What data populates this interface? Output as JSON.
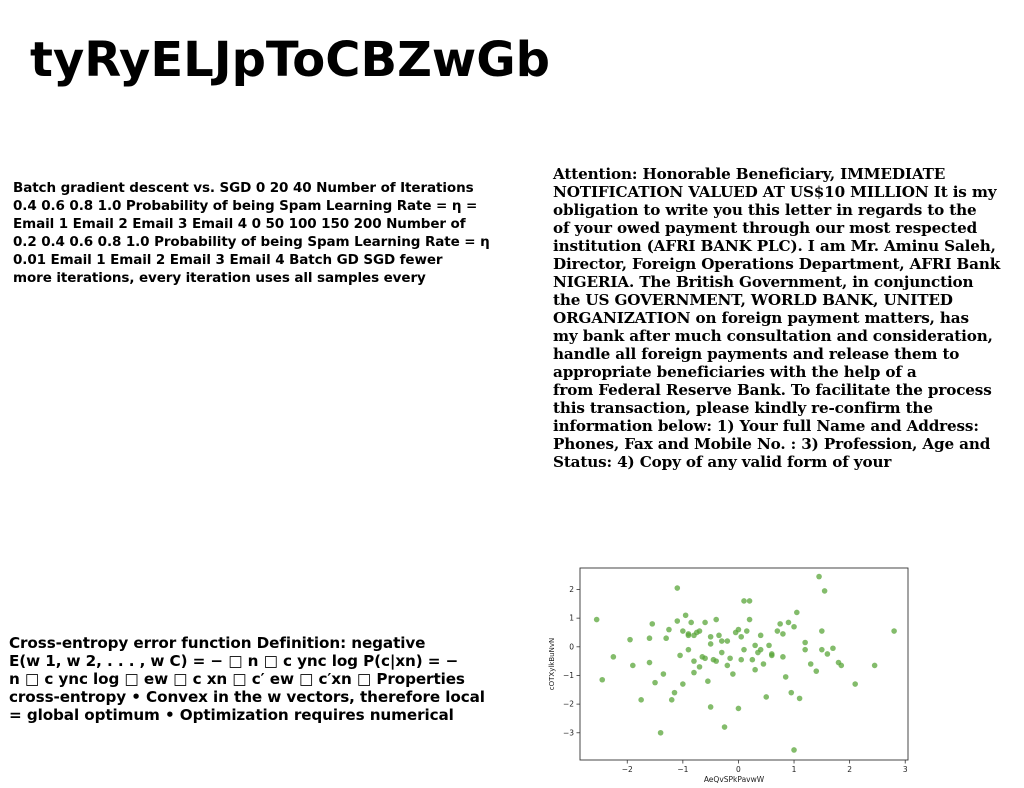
{
  "title": "tyRyELJpToCBZwGb",
  "block_gd": {
    "lines": [
      "Batch gradient descent vs. SGD 0 20 40 Number of Iterations",
      "0.4 0.6 0.8 1.0 Probability of being Spam Learning Rate = η =",
      "Email 1 Email 2 Email 3 Email 4 0 50 100 150 200 Number of",
      "0.2 0.4 0.6 0.8 1.0 Probability of being Spam Learning Rate = η",
      "0.01 Email 1 Email 2 Email 3 Email 4 Batch GD SGD fewer",
      "more iterations, every iteration uses all samples every"
    ]
  },
  "block_letter": {
    "lines": [
      "Attention: Honorable Beneficiary, IMMEDIATE",
      "NOTIFICATION VALUED AT US$10 MILLION It is my",
      "obligation to write you this letter in regards to the",
      "of your owed payment through our most respected",
      "institution (AFRI BANK PLC). I am Mr. Aminu Saleh,",
      "Director, Foreign Operations Department, AFRI Bank",
      "NIGERIA. The British Government, in conjunction",
      "the US GOVERNMENT, WORLD BANK, UNITED",
      "ORGANIZATION on foreign payment matters, has",
      "my bank after much consultation and consideration,",
      "handle all foreign payments and release them to",
      "appropriate beneficiaries with the help of a",
      "from Federal Reserve Bank. To facilitate the process",
      "this transaction, please kindly re-confirm the",
      "information below: 1) Your full Name and Address:",
      "Phones, Fax and Mobile No. : 3) Profession, Age and",
      "Status: 4) Copy of any valid form of your"
    ]
  },
  "block_ce": {
    "lines": [
      "Cross-entropy error function Definition: negative",
      "E(w 1, w 2, . . . , w C) = − □ n □ c ync log P(c|xn) = −",
      "n □ c ync log □ ew □ c xn □ c′ ew □ c′xn □ Properties",
      "cross-entropy • Convex in the w vectors, therefore local",
      "= global optimum • Optimization requires numerical"
    ]
  },
  "chart_data": {
    "type": "scatter",
    "xlabel": "AeQvSPkPavwW",
    "ylabel": "cOTXylkBuNvN",
    "xlim": [
      -2.85,
      3.05
    ],
    "ylim": [
      -3.95,
      2.75
    ],
    "xticks": [
      -2,
      -1,
      0,
      1,
      2,
      3
    ],
    "yticks": [
      -3,
      -2,
      -1,
      0,
      1,
      2
    ],
    "xtick_labels": [
      "−2",
      "−1",
      "0",
      "1",
      "2",
      "3"
    ],
    "ytick_labels": [
      "−3",
      "−2",
      "−1",
      "0",
      "1",
      "2"
    ],
    "color": "#5aa63a",
    "grid": false,
    "x": [
      -2.55,
      -2.45,
      -2.25,
      -1.95,
      -1.9,
      -1.75,
      -1.6,
      -1.55,
      -1.5,
      -1.4,
      -1.35,
      -1.25,
      -1.2,
      -1.15,
      -1.1,
      -1.05,
      -1.0,
      -1.0,
      -0.95,
      -0.9,
      -0.9,
      -0.85,
      -0.8,
      -0.8,
      -0.75,
      -0.7,
      -0.65,
      -0.6,
      -0.55,
      -0.5,
      -0.5,
      -0.45,
      -0.4,
      -0.4,
      -0.35,
      -0.3,
      -0.25,
      -0.2,
      -0.15,
      -0.1,
      -0.05,
      0.0,
      0.05,
      0.05,
      0.1,
      0.15,
      0.2,
      0.25,
      0.3,
      0.35,
      0.4,
      0.45,
      0.5,
      0.55,
      0.6,
      0.7,
      0.75,
      0.8,
      0.85,
      0.9,
      0.95,
      1.0,
      1.05,
      1.1,
      1.2,
      1.3,
      1.4,
      1.45,
      1.5,
      1.55,
      1.6,
      1.7,
      1.8,
      1.85,
      2.1,
      2.45,
      2.8,
      -1.6,
      -1.1,
      -0.9,
      -0.7,
      -0.5,
      -0.3,
      0.1,
      0.3,
      0.6,
      1.0,
      1.2,
      0.0,
      -0.2,
      0.4,
      -0.8,
      -1.3,
      0.8,
      1.5,
      -0.6,
      0.2
    ],
    "y": [
      0.95,
      -1.15,
      -0.35,
      0.25,
      -0.65,
      -1.85,
      0.3,
      0.8,
      -1.25,
      -3.0,
      -0.95,
      0.6,
      -1.85,
      -1.6,
      2.05,
      -0.3,
      0.55,
      -1.3,
      1.1,
      0.45,
      -0.1,
      0.85,
      -0.9,
      -0.5,
      0.5,
      0.55,
      -0.35,
      0.85,
      -1.2,
      0.35,
      -2.1,
      -0.45,
      -0.5,
      0.95,
      0.4,
      -0.2,
      -2.8,
      0.2,
      -0.4,
      -0.95,
      0.5,
      -2.15,
      -0.45,
      0.35,
      1.6,
      0.55,
      1.6,
      -0.45,
      -0.8,
      -0.2,
      -0.1,
      -0.6,
      -1.75,
      0.05,
      -0.25,
      0.55,
      0.8,
      -0.35,
      -1.05,
      0.85,
      -1.6,
      -3.6,
      1.2,
      -1.8,
      -0.1,
      -0.6,
      -0.85,
      2.45,
      0.55,
      1.95,
      -0.25,
      -0.05,
      -0.55,
      -0.65,
      -1.3,
      -0.65,
      0.55,
      -0.55,
      0.9,
      0.4,
      -0.7,
      0.1,
      0.2,
      -0.1,
      0.05,
      -0.3,
      0.7,
      0.15,
      0.6,
      -0.65,
      0.4,
      0.4,
      0.3,
      0.45,
      -0.1,
      -0.4,
      0.95
    ]
  }
}
